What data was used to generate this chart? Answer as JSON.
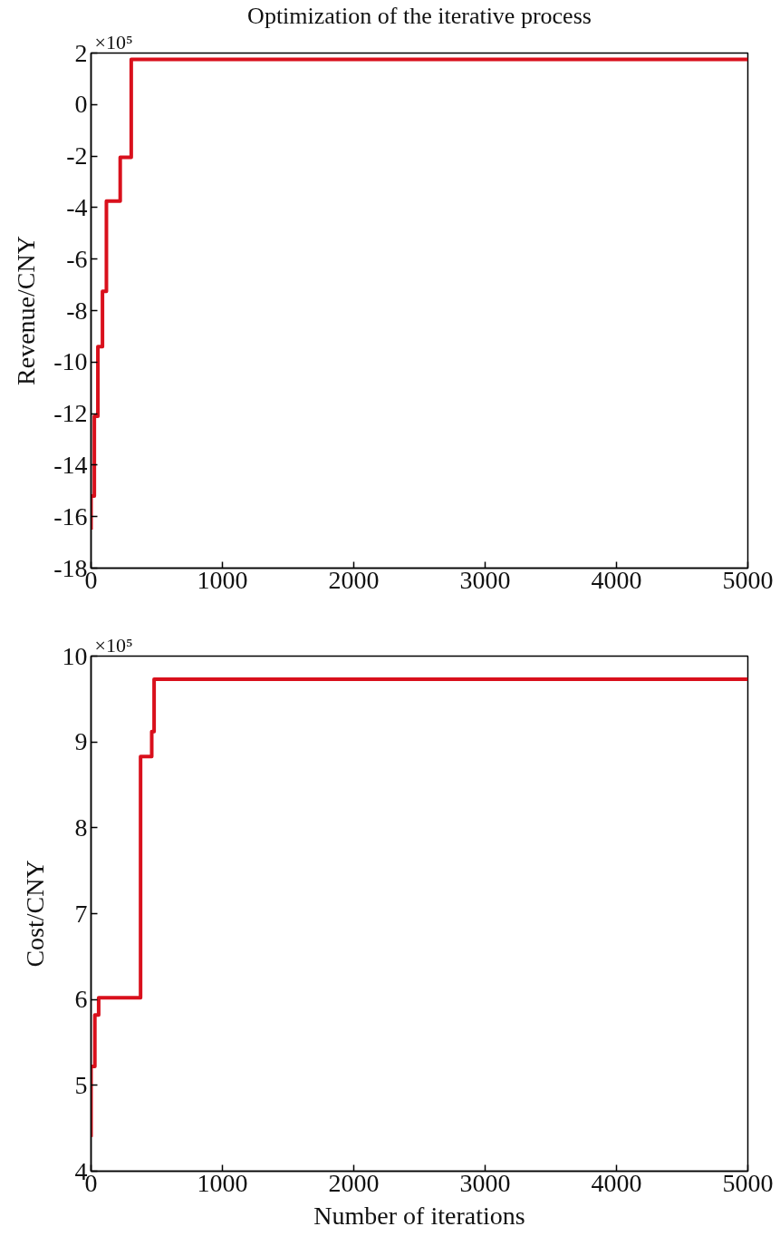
{
  "chart_data": [
    {
      "type": "step",
      "title": "Optimization of the iterative process",
      "ylabel": "Revenue/CNY",
      "annotations": [
        "×10⁵"
      ],
      "x": [
        0,
        0,
        25,
        52,
        87,
        117,
        222,
        306,
        5000
      ],
      "series": [
        {
          "color": "#d9101c",
          "values": [
            -16.5,
            -15.2,
            -12.1,
            -9.4,
            -7.25,
            -3.75,
            -2.05,
            1.75,
            1.75
          ]
        }
      ],
      "xlim": [
        0,
        5000
      ],
      "xticks": [
        0,
        1000,
        2000,
        3000,
        4000,
        5000
      ],
      "ylim": [
        -18,
        2
      ],
      "yticks": [
        -18,
        -16,
        -14,
        -12,
        -10,
        -8,
        -6,
        -4,
        -2,
        0,
        2
      ],
      "line_style": "solid"
    },
    {
      "type": "step",
      "xlabel": "Number of iterations",
      "ylabel": "Cost/CNY",
      "annotations": [
        "×10⁵"
      ],
      "x": [
        0,
        0,
        29,
        58,
        377,
        462,
        480,
        5000
      ],
      "series": [
        {
          "color": "#d9101c",
          "values": [
            4.4,
            5.22,
            5.82,
            6.02,
            8.83,
            9.12,
            9.73,
            9.73
          ]
        }
      ],
      "xlim": [
        0,
        5000
      ],
      "xticks": [
        0,
        1000,
        2000,
        3000,
        4000,
        5000
      ],
      "ylim": [
        4,
        10
      ],
      "yticks": [
        4,
        5,
        6,
        7,
        8,
        9,
        10
      ],
      "line_style": "solid"
    }
  ]
}
